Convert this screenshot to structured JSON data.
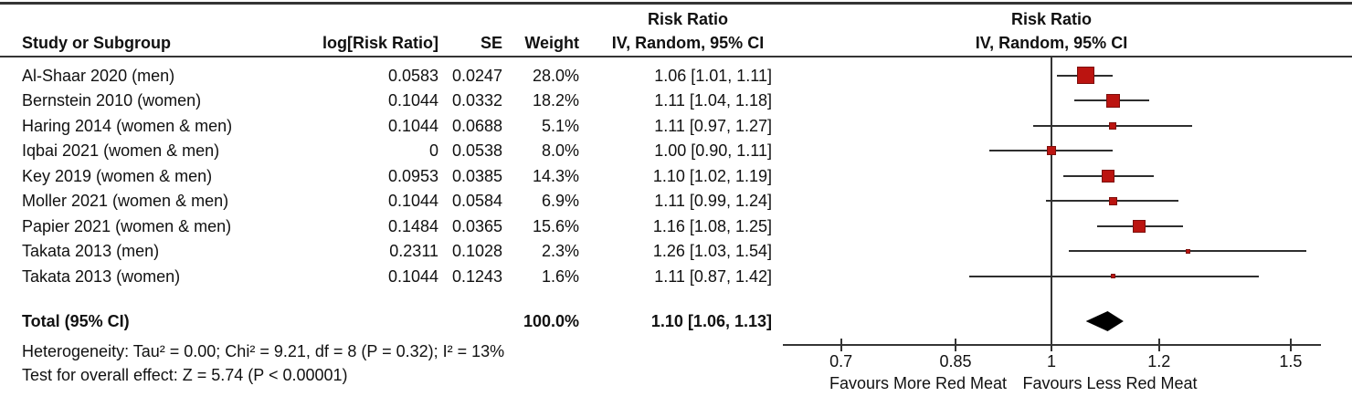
{
  "header": {
    "col_study": "Study or Subgroup",
    "col_log_rr": "log[Risk Ratio]",
    "col_se": "SE",
    "col_weight": "Weight",
    "stats_title": "Risk Ratio",
    "stats_subtitle": "IV, Random, 95% CI",
    "plot_title": "Risk Ratio",
    "plot_subtitle": "IV, Random, 95% CI"
  },
  "colors": {
    "marker": "#bb1410",
    "marker_border": "#7d0f0c",
    "line": "#2e2e2e",
    "diamond": "#000000"
  },
  "chart_data": {
    "type": "scatter",
    "variant": "forest-plot",
    "effect_measure": "Risk Ratio",
    "model": "IV, Random, 95% CI",
    "scale": "log",
    "axis": {
      "ticks": [
        0.7,
        0.85,
        1,
        1.2,
        1.5
      ],
      "tick_labels": [
        "0.7",
        "0.85",
        "1",
        "1.2",
        "1.5"
      ],
      "null_value": 1
    },
    "studies": [
      {
        "name": "Al-Shaar 2020 (men)",
        "log_rr": "0.0583",
        "se": "0.0247",
        "weight": "28.0%",
        "weight_pct": 28.0,
        "ci_text": "1.06 [1.01, 1.11]",
        "rr": 1.06,
        "low": 1.01,
        "high": 1.11
      },
      {
        "name": "Bernstein 2010 (women)",
        "log_rr": "0.1044",
        "se": "0.0332",
        "weight": "18.2%",
        "weight_pct": 18.2,
        "ci_text": "1.11 [1.04, 1.18]",
        "rr": 1.11,
        "low": 1.04,
        "high": 1.18
      },
      {
        "name": "Haring 2014 (women & men)",
        "log_rr": "0.1044",
        "se": "0.0688",
        "weight": "5.1%",
        "weight_pct": 5.1,
        "ci_text": "1.11 [0.97, 1.27]",
        "rr": 1.11,
        "low": 0.97,
        "high": 1.27
      },
      {
        "name": "Iqbai 2021 (women & men)",
        "log_rr": "0",
        "se": "0.0538",
        "weight": "8.0%",
        "weight_pct": 8.0,
        "ci_text": "1.00 [0.90, 1.11]",
        "rr": 1.0,
        "low": 0.9,
        "high": 1.11
      },
      {
        "name": "Key 2019 (women & men)",
        "log_rr": "0.0953",
        "se": "0.0385",
        "weight": "14.3%",
        "weight_pct": 14.3,
        "ci_text": "1.10 [1.02, 1.19]",
        "rr": 1.1,
        "low": 1.02,
        "high": 1.19
      },
      {
        "name": "Moller 2021 (women & men)",
        "log_rr": "0.1044",
        "se": "0.0584",
        "weight": "6.9%",
        "weight_pct": 6.9,
        "ci_text": "1.11 [0.99, 1.24]",
        "rr": 1.11,
        "low": 0.99,
        "high": 1.24
      },
      {
        "name": "Papier 2021 (women & men)",
        "log_rr": "0.1484",
        "se": "0.0365",
        "weight": "15.6%",
        "weight_pct": 15.6,
        "ci_text": "1.16 [1.08, 1.25]",
        "rr": 1.16,
        "low": 1.08,
        "high": 1.25
      },
      {
        "name": "Takata 2013 (men)",
        "log_rr": "0.2311",
        "se": "0.1028",
        "weight": "2.3%",
        "weight_pct": 2.3,
        "ci_text": "1.26 [1.03, 1.54]",
        "rr": 1.26,
        "low": 1.03,
        "high": 1.54
      },
      {
        "name": "Takata 2013 (women)",
        "log_rr": "0.1044",
        "se": "0.1243",
        "weight": "1.6%",
        "weight_pct": 1.6,
        "ci_text": "1.11 [0.87, 1.42]",
        "rr": 1.11,
        "low": 0.87,
        "high": 1.42
      }
    ],
    "total": {
      "label": "Total (95% CI)",
      "weight": "100.0%",
      "ci_text": "1.10 [1.06, 1.13]",
      "rr": 1.1,
      "low": 1.06,
      "high": 1.13
    },
    "heterogeneity": "Heterogeneity: Tau² = 0.00; Chi² = 9.21, df = 8 (P = 0.32); I² = 13%",
    "overall_effect": "Test for overall effect: Z = 5.74 (P < 0.00001)",
    "favours_left": "Favours More Red Meat",
    "favours_right": "Favours Less Red Meat"
  }
}
